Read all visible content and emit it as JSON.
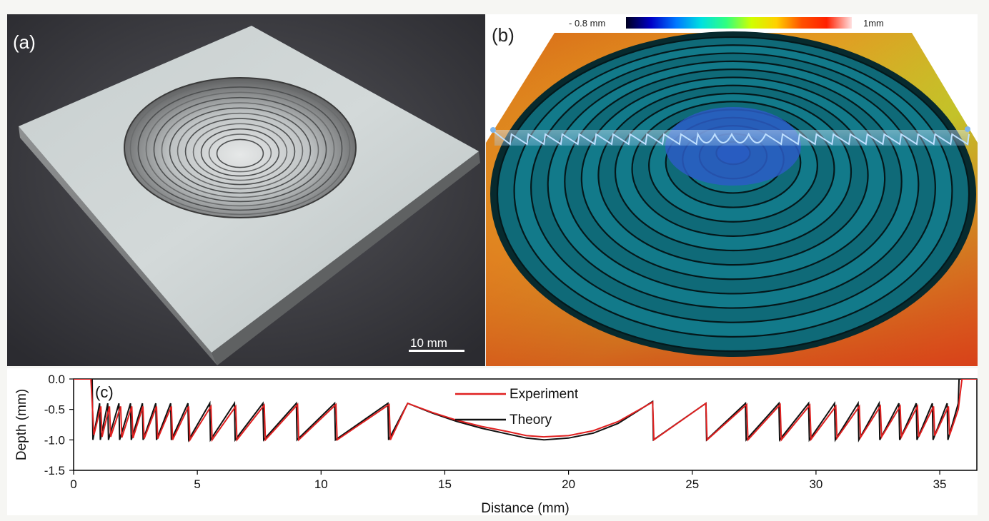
{
  "panels": {
    "a": {
      "label": "(a)",
      "scale_bar": "10 mm"
    },
    "b": {
      "label": "(b)",
      "colorbar": {
        "min_label": "- 0.8 mm",
        "max_label": "1mm",
        "colors": [
          "#000020",
          "#0000c8",
          "#0078ff",
          "#00e0e0",
          "#30ff80",
          "#d0ff00",
          "#ffd000",
          "#ff5000",
          "#ff2000",
          "#ffe0e0"
        ]
      }
    },
    "c": {
      "label": "(c)"
    }
  },
  "chart_data": {
    "type": "line",
    "xlabel": "Distance (mm)",
    "ylabel": "Depth (mm)",
    "xlim": [
      0,
      36.5
    ],
    "ylim": [
      -1.5,
      0.0
    ],
    "xticks": [
      "0",
      "5",
      "10",
      "15",
      "20",
      "25",
      "30",
      "35"
    ],
    "yticks": [
      "0.0",
      "-0.5",
      "-1.0",
      "-1.5"
    ],
    "legend_position": "top-center",
    "series": [
      {
        "name": "Experiment",
        "color": "#e02020",
        "x": [
          0,
          0.7,
          0.82,
          1.1,
          1.15,
          1.45,
          1.5,
          1.9,
          1.95,
          2.35,
          2.4,
          2.8,
          2.85,
          3.35,
          3.4,
          3.95,
          4.0,
          4.65,
          4.7,
          5.55,
          5.6,
          6.55,
          6.6,
          7.7,
          7.75,
          9.05,
          9.1,
          10.6,
          10.65,
          12.75,
          12.8,
          13.5,
          14.5,
          15.5,
          16.5,
          17.5,
          18.3,
          19.0,
          20.0,
          21.0,
          22.0,
          23.4,
          23.45,
          25.55,
          25.6,
          27.2,
          27.25,
          28.55,
          28.6,
          29.75,
          29.8,
          30.8,
          30.85,
          31.75,
          31.8,
          32.6,
          32.65,
          33.4,
          33.45,
          34.1,
          34.15,
          34.75,
          34.8,
          35.35,
          35.4,
          35.75,
          35.9,
          36.5
        ],
        "y": [
          0.0,
          0.0,
          -0.92,
          -0.45,
          -0.95,
          -0.45,
          -0.95,
          -0.45,
          -0.96,
          -0.45,
          -0.97,
          -0.45,
          -0.98,
          -0.45,
          -0.98,
          -0.45,
          -1.0,
          -0.45,
          -1.0,
          -0.45,
          -1.0,
          -0.45,
          -1.0,
          -0.43,
          -1.0,
          -0.42,
          -1.0,
          -0.42,
          -1.0,
          -0.42,
          -1.0,
          -0.4,
          -0.55,
          -0.68,
          -0.78,
          -0.86,
          -0.93,
          -0.95,
          -0.93,
          -0.85,
          -0.7,
          -0.38,
          -1.0,
          -0.4,
          -1.0,
          -0.42,
          -1.0,
          -0.42,
          -1.0,
          -0.43,
          -0.99,
          -0.45,
          -0.97,
          -0.45,
          -0.96,
          -0.45,
          -0.95,
          -0.45,
          -0.95,
          -0.45,
          -0.95,
          -0.45,
          -0.93,
          -0.45,
          -0.92,
          -0.5,
          0.0,
          0.0
        ]
      },
      {
        "name": "Theory",
        "color": "#111111",
        "x": [
          0,
          0.75,
          0.78,
          1.05,
          1.08,
          1.38,
          1.41,
          1.83,
          1.86,
          2.3,
          2.33,
          2.78,
          2.81,
          3.32,
          3.35,
          3.92,
          3.95,
          4.62,
          4.65,
          5.5,
          5.53,
          6.5,
          6.53,
          7.65,
          7.68,
          9.0,
          9.03,
          10.55,
          10.58,
          12.7,
          12.73,
          13.5,
          14.5,
          15.5,
          16.5,
          17.5,
          18.3,
          19.0,
          20.0,
          21.0,
          22.0,
          23.4,
          23.43,
          25.55,
          25.58,
          27.15,
          27.18,
          28.5,
          28.53,
          29.7,
          29.73,
          30.75,
          30.78,
          31.7,
          31.73,
          32.55,
          32.58,
          33.35,
          33.38,
          34.05,
          34.08,
          34.7,
          34.73,
          35.3,
          35.33,
          35.75,
          35.78,
          36.5
        ],
        "y": [
          0.0,
          0.0,
          -1.0,
          -0.4,
          -1.0,
          -0.4,
          -1.0,
          -0.4,
          -1.0,
          -0.4,
          -1.0,
          -0.4,
          -1.0,
          -0.4,
          -1.0,
          -0.4,
          -1.0,
          -0.4,
          -1.0,
          -0.4,
          -1.0,
          -0.4,
          -1.0,
          -0.4,
          -1.0,
          -0.4,
          -1.0,
          -0.4,
          -1.0,
          -0.4,
          -1.0,
          -0.4,
          -0.56,
          -0.7,
          -0.81,
          -0.9,
          -0.97,
          -1.0,
          -0.97,
          -0.89,
          -0.73,
          -0.37,
          -1.0,
          -0.4,
          -1.0,
          -0.4,
          -1.0,
          -0.4,
          -1.0,
          -0.4,
          -1.0,
          -0.4,
          -1.0,
          -0.4,
          -1.0,
          -0.4,
          -1.0,
          -0.4,
          -1.0,
          -0.4,
          -1.0,
          -0.4,
          -1.0,
          -0.4,
          -1.0,
          -0.4,
          0.0,
          0.0
        ]
      }
    ]
  }
}
